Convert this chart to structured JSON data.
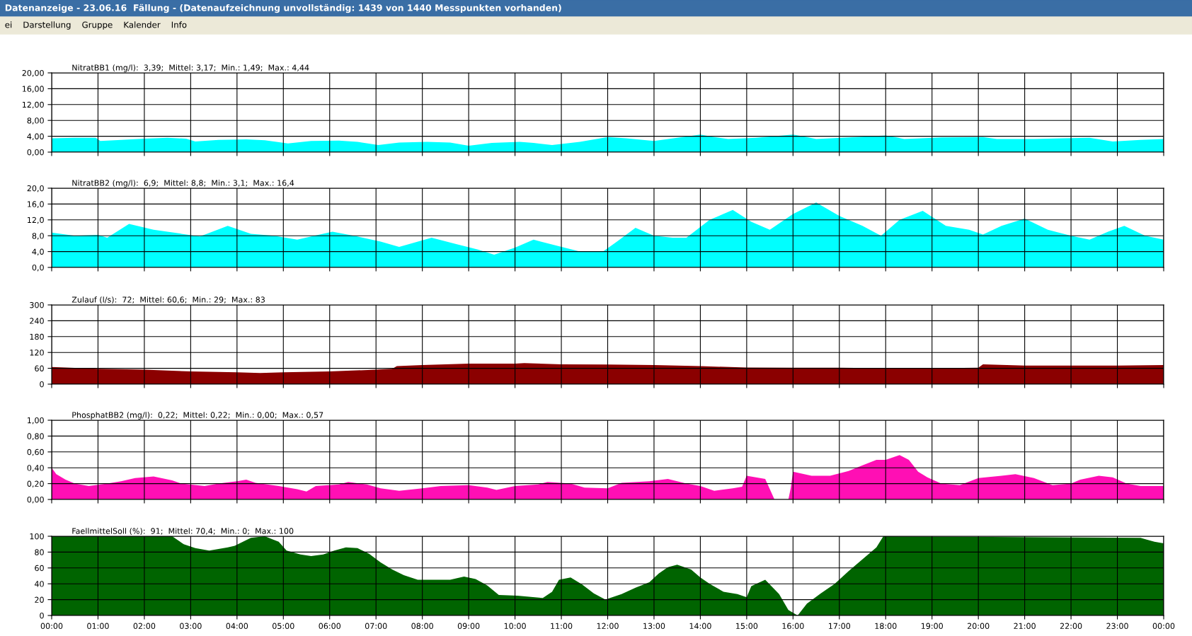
{
  "chart_data": [
    {
      "type": "area",
      "title": "NitratBB1 (mg/l):  3,39;  Mittel: 3,17;  Min.: 1,49;  Max.: 4,44",
      "annotations": [
        "Datenanzeige - 23.06.16  Fällung - (Datenaufzeichnung unvollständig: 1439 von 1440 Messpunkten vorhanden)",
        "ei    Darstellung    Gruppe    Kalender    Info"
      ],
      "series": [
        {
          "color": "#00ffff",
          "x": [
            0,
            0.5,
            0.95,
            1.05,
            1.5,
            2.0,
            2.5,
            2.9,
            3.1,
            3.6,
            4.2,
            4.6,
            5.1,
            5.6,
            6.2,
            6.6,
            7.05,
            7.5,
            8.1,
            8.6,
            9.0,
            9.5,
            10.1,
            10.4,
            10.8,
            11.4,
            12.0,
            12.4,
            13.0,
            13.5,
            14.0,
            14.3,
            14.6,
            15.2,
            16.0,
            16.2,
            16.5,
            17.2,
            18.0,
            18.2,
            18.4,
            19.2,
            20.1,
            20.4,
            21.2,
            21.8,
            22.4,
            22.9,
            23.5,
            24
          ],
          "values": [
            3.5,
            3.6,
            3.6,
            2.8,
            3.1,
            3.4,
            3.6,
            3.4,
            2.7,
            3.1,
            3.2,
            3.0,
            2.2,
            2.8,
            2.9,
            2.6,
            1.8,
            2.4,
            2.6,
            2.4,
            1.6,
            2.3,
            2.6,
            2.3,
            1.8,
            2.6,
            3.8,
            3.5,
            2.8,
            3.6,
            4.4,
            3.8,
            3.3,
            3.6,
            4.4,
            4.0,
            3.3,
            3.7,
            4.2,
            3.8,
            3.3,
            3.7,
            3.8,
            3.3,
            3.3,
            3.5,
            3.6,
            2.7,
            3.1,
            3.3
          ]
        }
      ],
      "xlim": [
        0,
        24
      ],
      "xticks": [
        0,
        1,
        2,
        3,
        4,
        5,
        6,
        7,
        8,
        9,
        10,
        11,
        12,
        13,
        14,
        15,
        16,
        17,
        18,
        19,
        20,
        21,
        22,
        23,
        24
      ],
      "ylim": [
        0,
        20
      ],
      "yticks": [
        {
          "value": 0,
          "label": "0,00"
        },
        {
          "value": 4,
          "label": "4,00"
        },
        {
          "value": 8,
          "label": "8,00"
        },
        {
          "value": 12,
          "label": "12,00"
        },
        {
          "value": 16,
          "label": "16,00"
        },
        {
          "value": 20,
          "label": "20,00"
        }
      ],
      "grid": true,
      "tick_labels": "y"
    },
    {
      "type": "area",
      "title": "NitratBB2 (mg/l):  6,9;  Mittel: 8,8;  Min.: 3,1;  Max.: 16,4",
      "series": [
        {
          "color": "#00ffff",
          "x": [
            0,
            0.5,
            1.0,
            1.2,
            1.67,
            2.2,
            2.8,
            3.2,
            3.8,
            4.3,
            4.8,
            5.3,
            5.6,
            6.06,
            6.6,
            7.1,
            7.5,
            8.2,
            8.7,
            9.2,
            9.55,
            10.0,
            10.4,
            10.9,
            11.4,
            11.9,
            12.2,
            12.6,
            13.0,
            13.4,
            13.7,
            14.2,
            14.7,
            15.1,
            15.5,
            16.0,
            16.5,
            17.0,
            17.5,
            17.9,
            18.3,
            18.8,
            19.3,
            19.8,
            20.1,
            20.5,
            21.0,
            21.5,
            22.0,
            22.4,
            22.8,
            23.15,
            23.6,
            24
          ],
          "values": [
            8.8,
            8.0,
            8.2,
            7.5,
            11.0,
            9.5,
            8.5,
            7.8,
            10.5,
            8.5,
            8.0,
            7.0,
            7.8,
            9.0,
            7.8,
            6.5,
            5.2,
            7.5,
            6.0,
            4.5,
            3.2,
            5.0,
            7.0,
            5.5,
            4.0,
            4.0,
            6.5,
            10.0,
            8.0,
            7.5,
            7.5,
            12.0,
            14.5,
            11.5,
            9.5,
            13.5,
            16.4,
            13.0,
            10.5,
            8.0,
            12.0,
            14.3,
            10.5,
            9.5,
            8.3,
            10.5,
            12.3,
            9.5,
            8.0,
            7.0,
            9.0,
            10.5,
            8.0,
            7.0
          ]
        }
      ],
      "xlim": [
        0,
        24
      ],
      "xticks": [
        0,
        1,
        2,
        3,
        4,
        5,
        6,
        7,
        8,
        9,
        10,
        11,
        12,
        13,
        14,
        15,
        16,
        17,
        18,
        19,
        20,
        21,
        22,
        23,
        24
      ],
      "ylim": [
        0,
        20
      ],
      "yticks": [
        {
          "value": 0,
          "label": "0,0"
        },
        {
          "value": 4,
          "label": "4,0"
        },
        {
          "value": 8,
          "label": "8,0"
        },
        {
          "value": 12,
          "label": "12,0"
        },
        {
          "value": 16,
          "label": "16,0"
        },
        {
          "value": 20,
          "label": "20,0"
        }
      ],
      "grid": true,
      "tick_labels": "y"
    },
    {
      "type": "area",
      "title": "Zulauf (l/s):  72;  Mittel: 60,6;  Min.: 29;  Max.: 83",
      "series": [
        {
          "color": "#8b0000",
          "x": [
            0,
            1,
            2,
            3,
            4,
            4.5,
            5,
            6,
            7,
            7.35,
            7.45,
            8,
            9,
            10,
            10.2,
            11,
            12,
            13,
            14,
            15,
            16,
            17,
            18,
            19,
            20,
            20.1,
            21,
            22,
            23,
            24
          ],
          "values": [
            65,
            58,
            55,
            48,
            45,
            42,
            45,
            48,
            55,
            58,
            68,
            72,
            78,
            78,
            80,
            75,
            74,
            72,
            68,
            63,
            62,
            62,
            60,
            60,
            62,
            75,
            70,
            70,
            70,
            72
          ]
        }
      ],
      "xlim": [
        0,
        24
      ],
      "xticks": [
        0,
        1,
        2,
        3,
        4,
        5,
        6,
        7,
        8,
        9,
        10,
        11,
        12,
        13,
        14,
        15,
        16,
        17,
        18,
        19,
        20,
        21,
        22,
        23,
        24
      ],
      "ylim": [
        0,
        300
      ],
      "yticks": [
        0,
        60,
        120,
        180,
        240,
        300
      ],
      "grid": true,
      "tick_labels": "y"
    },
    {
      "type": "area",
      "title": "PhosphatBB2 (mg/l):  0,22;  Mittel: 0,22;  Min.: 0,00;  Max.: 0,57",
      "series": [
        {
          "color": "#ff0fb4",
          "x": [
            0,
            0.1,
            0.3,
            0.5,
            0.8,
            1.2,
            1.5,
            1.8,
            2.2,
            2.6,
            2.8,
            3.3,
            3.6,
            4.0,
            4.2,
            4.4,
            4.9,
            5.3,
            5.5,
            5.7,
            6.2,
            6.4,
            6.8,
            7.1,
            7.5,
            8.0,
            8.4,
            9.0,
            9.4,
            9.6,
            10.0,
            10.5,
            10.7,
            11.2,
            11.5,
            12.0,
            12.3,
            12.9,
            13.3,
            13.7,
            14.0,
            14.3,
            14.7,
            14.9,
            15.0,
            15.4,
            15.6,
            15.9,
            15.95,
            16.0,
            16.4,
            16.8,
            17.2,
            17.5,
            17.8,
            18.0,
            18.3,
            18.5,
            18.7,
            18.9,
            19.2,
            19.6,
            20.0,
            20.5,
            20.8,
            21.2,
            21.6,
            22.0,
            22.2,
            22.6,
            22.9,
            23.2,
            23.5,
            24
          ],
          "values": [
            0.4,
            0.32,
            0.25,
            0.2,
            0.17,
            0.2,
            0.23,
            0.27,
            0.29,
            0.24,
            0.2,
            0.17,
            0.2,
            0.23,
            0.25,
            0.21,
            0.17,
            0.13,
            0.1,
            0.17,
            0.19,
            0.22,
            0.19,
            0.14,
            0.11,
            0.14,
            0.17,
            0.18,
            0.15,
            0.12,
            0.17,
            0.19,
            0.22,
            0.2,
            0.15,
            0.14,
            0.21,
            0.23,
            0.26,
            0.2,
            0.17,
            0.11,
            0.14,
            0.16,
            0.3,
            0.26,
            0.0,
            0.0,
            0.14,
            0.35,
            0.3,
            0.3,
            0.36,
            0.43,
            0.5,
            0.5,
            0.56,
            0.5,
            0.35,
            0.28,
            0.2,
            0.18,
            0.27,
            0.3,
            0.32,
            0.27,
            0.18,
            0.2,
            0.25,
            0.3,
            0.28,
            0.2,
            0.17,
            0.17
          ]
        }
      ],
      "xlim": [
        0,
        24
      ],
      "xticks": [
        0,
        1,
        2,
        3,
        4,
        5,
        6,
        7,
        8,
        9,
        10,
        11,
        12,
        13,
        14,
        15,
        16,
        17,
        18,
        19,
        20,
        21,
        22,
        23,
        24
      ],
      "ylim": [
        0,
        1
      ],
      "yticks": [
        {
          "value": 0,
          "label": "0,00"
        },
        {
          "value": 0.2,
          "label": "0,20"
        },
        {
          "value": 0.4,
          "label": "0,40"
        },
        {
          "value": 0.6,
          "label": "0,60"
        },
        {
          "value": 0.8,
          "label": "0,80"
        },
        {
          "value": 1,
          "label": "1,00"
        }
      ],
      "grid": true,
      "tick_labels": "y"
    },
    {
      "type": "area",
      "title": "FaellmittelSoll (%):  91;  Mittel: 70,4;  Min.: 0;  Max.: 100",
      "series": [
        {
          "color": "#006400",
          "x": [
            0,
            2.6,
            2.85,
            3.1,
            3.4,
            3.8,
            3.95,
            4.3,
            4.6,
            4.9,
            5.07,
            5.37,
            5.6,
            5.86,
            6.1,
            6.35,
            6.6,
            6.85,
            7.1,
            7.35,
            7.6,
            7.9,
            8.6,
            8.75,
            8.9,
            9.15,
            9.4,
            9.65,
            10.05,
            10.6,
            10.8,
            10.95,
            11.2,
            11.45,
            11.7,
            11.95,
            12.3,
            12.6,
            12.9,
            13.1,
            13.3,
            13.5,
            13.8,
            14.0,
            14.2,
            14.5,
            14.8,
            15.0,
            15.1,
            15.4,
            15.7,
            15.9,
            16.1,
            16.3,
            16.6,
            16.9,
            17.2,
            17.5,
            17.8,
            17.95,
            23.5,
            23.8,
            24
          ],
          "values": [
            100,
            100,
            90,
            85,
            82,
            86,
            88,
            98,
            100,
            93,
            82,
            77,
            75,
            77,
            82,
            86,
            85,
            78,
            67,
            58,
            51,
            45,
            45,
            47,
            49,
            46,
            38,
            26,
            25,
            22,
            30,
            45,
            48,
            39,
            28,
            20,
            27,
            35,
            42,
            53,
            61,
            64,
            58,
            48,
            40,
            30,
            27,
            23,
            37,
            45,
            27,
            7,
            0,
            15,
            28,
            40,
            56,
            71,
            86,
            100,
            98,
            93,
            91
          ]
        }
      ],
      "xlim": [
        0,
        24
      ],
      "xticks": [
        {
          "value": 0,
          "label": "00:00"
        },
        {
          "value": 1,
          "label": "01:00"
        },
        {
          "value": 2,
          "label": "02:00"
        },
        {
          "value": 3,
          "label": "03:00"
        },
        {
          "value": 4,
          "label": "04:00"
        },
        {
          "value": 5,
          "label": "05:00"
        },
        {
          "value": 6,
          "label": "06:00"
        },
        {
          "value": 7,
          "label": "07:00"
        },
        {
          "value": 8,
          "label": "08:00"
        },
        {
          "value": 9,
          "label": "09:00"
        },
        {
          "value": 10,
          "label": "10:00"
        },
        {
          "value": 11,
          "label": "11:00"
        },
        {
          "value": 12,
          "label": "12:00"
        },
        {
          "value": 13,
          "label": "13:00"
        },
        {
          "value": 14,
          "label": "14:00"
        },
        {
          "value": 15,
          "label": "15:00"
        },
        {
          "value": 16,
          "label": "16:00"
        },
        {
          "value": 17,
          "label": "17:00"
        },
        {
          "value": 18,
          "label": "18:00"
        },
        {
          "value": 19,
          "label": "19:00"
        },
        {
          "value": 20,
          "label": "20:00"
        },
        {
          "value": 21,
          "label": "21:00"
        },
        {
          "value": 22,
          "label": "22:00"
        },
        {
          "value": 23,
          "label": "23:00"
        },
        {
          "value": 24,
          "label": "00:00"
        }
      ],
      "ylim": [
        0,
        100
      ],
      "yticks": [
        0,
        20,
        40,
        60,
        80,
        100
      ],
      "grid": true
    }
  ]
}
